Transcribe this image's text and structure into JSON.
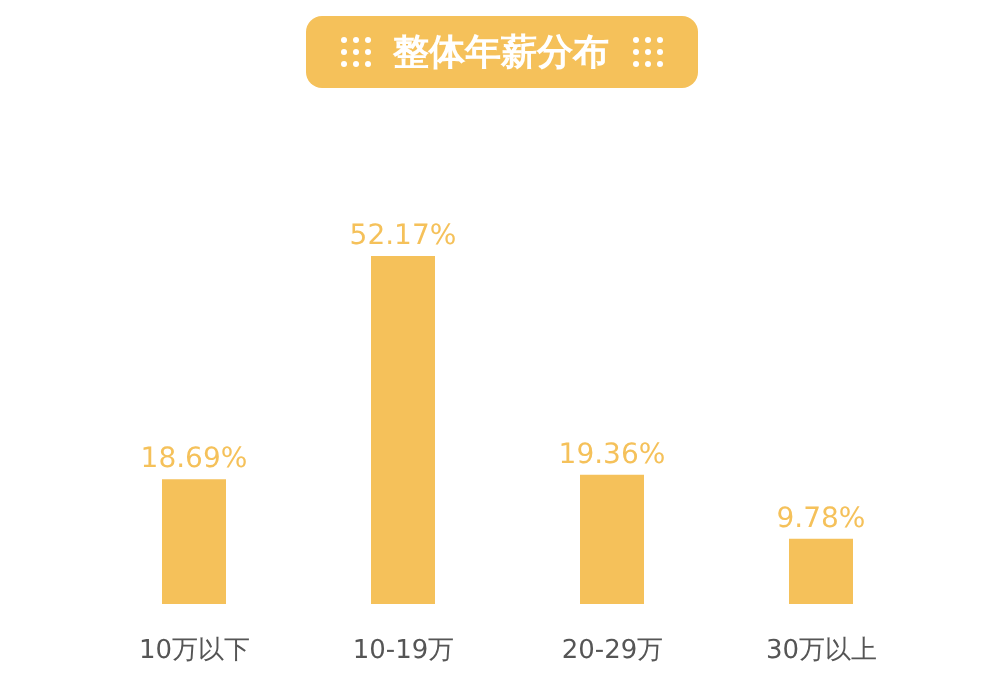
{
  "chart_data": {
    "type": "bar",
    "title": "整体年薪分布",
    "categories": [
      "10万以下",
      "10-19万",
      "20-29万",
      "30万以上"
    ],
    "series": [
      {
        "color": "#f5c15a",
        "values": [
          18.69,
          52.17,
          19.36,
          9.78
        ],
        "value_labels": [
          "18.69%",
          "52.17%",
          "19.36%",
          "9.78%"
        ]
      }
    ],
    "grid": false,
    "legend": false
  }
}
